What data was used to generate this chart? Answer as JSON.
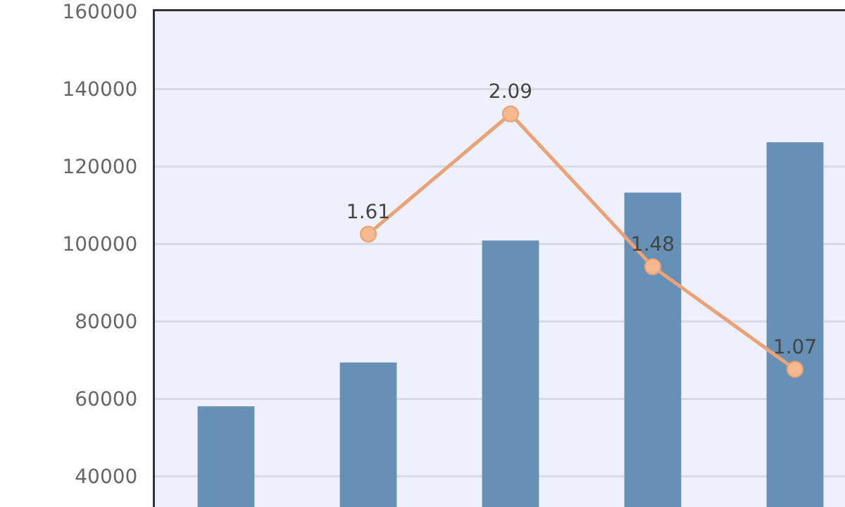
{
  "chart_data": {
    "type": "bar",
    "categories": [
      null,
      null,
      null,
      null,
      null
    ],
    "series": [
      {
        "color": "#6690b5",
        "values": [
          58000,
          69300,
          100800,
          113200,
          126200
        ]
      },
      {
        "type": "line",
        "axis": "y2",
        "color": "#eba276",
        "values": [
          null,
          1.61,
          2.09,
          1.48,
          1.07
        ],
        "value_labels": [
          null,
          "1.61",
          "2.09",
          "1.48",
          "1.07"
        ]
      }
    ],
    "ylim": [
      32000,
      160000
    ],
    "yticks": [
      40000,
      60000,
      80000,
      100000,
      120000,
      140000,
      160000
    ],
    "y2lim": [
      0.52,
      2.5
    ],
    "grid": "y",
    "tick_labels": "y",
    "marker": "circle",
    "line_style": "solid"
  }
}
